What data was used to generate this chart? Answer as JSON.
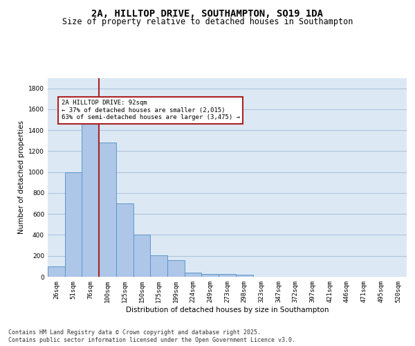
{
  "title_line1": "2A, HILLTOP DRIVE, SOUTHAMPTON, SO19 1DA",
  "title_line2": "Size of property relative to detached houses in Southampton",
  "xlabel": "Distribution of detached houses by size in Southampton",
  "ylabel": "Number of detached properties",
  "categories": [
    "26sqm",
    "51sqm",
    "76sqm",
    "100sqm",
    "125sqm",
    "150sqm",
    "175sqm",
    "199sqm",
    "224sqm",
    "249sqm",
    "273sqm",
    "298sqm",
    "323sqm",
    "347sqm",
    "372sqm",
    "397sqm",
    "421sqm",
    "446sqm",
    "471sqm",
    "495sqm",
    "520sqm"
  ],
  "values": [
    100,
    1000,
    1500,
    1280,
    700,
    400,
    205,
    160,
    40,
    25,
    25,
    18,
    0,
    0,
    0,
    0,
    0,
    0,
    0,
    0,
    0
  ],
  "bar_color": "#aec6e8",
  "bar_edge_color": "#5a96c8",
  "vline_color": "#aa2222",
  "annotation_text": "2A HILLTOP DRIVE: 92sqm\n← 37% of detached houses are smaller (2,015)\n63% of semi-detached houses are larger (3,475) →",
  "annotation_box_color": "#aa2222",
  "annotation_bg_color": "#ffffff",
  "ylim": [
    0,
    1900
  ],
  "yticks": [
    0,
    200,
    400,
    600,
    800,
    1000,
    1200,
    1400,
    1600,
    1800
  ],
  "grid_color": "#b0c4de",
  "bg_color": "#dce9f5",
  "footer_line1": "Contains HM Land Registry data © Crown copyright and database right 2025.",
  "footer_line2": "Contains public sector information licensed under the Open Government Licence v3.0.",
  "title_fontsize": 10,
  "subtitle_fontsize": 8.5,
  "axis_label_fontsize": 7.5,
  "tick_fontsize": 6.5,
  "annotation_fontsize": 6.5,
  "footer_fontsize": 6.0
}
